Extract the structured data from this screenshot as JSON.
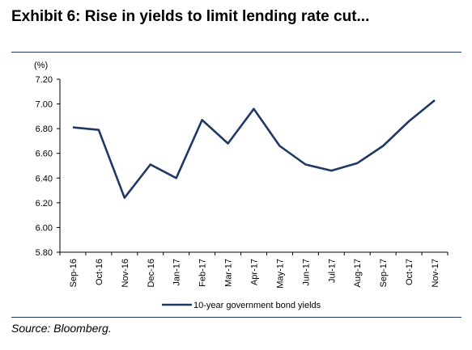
{
  "title": "Exhibit 6:  Rise in yields to limit lending rate cut...",
  "source": "Source: Bloomberg.",
  "chart_data": {
    "type": "line",
    "title": "",
    "ylabel": "(%)",
    "xlabel": "",
    "ylim": [
      5.8,
      7.2
    ],
    "yticks": [
      "5.80",
      "6.00",
      "6.20",
      "6.40",
      "6.60",
      "6.80",
      "7.00",
      "7.20"
    ],
    "categories": [
      "Sep-16",
      "Oct-16",
      "Nov-16",
      "Dec-16",
      "Jan-17",
      "Feb-17",
      "Mar-17",
      "Apr-17",
      "May-17",
      "Jun-17",
      "Jul-17",
      "Aug-17",
      "Sep-17",
      "Oct-17",
      "Nov-17"
    ],
    "series": [
      {
        "name": "10-year government bond yields",
        "color": "#1f3864",
        "values": [
          6.81,
          6.79,
          6.24,
          6.51,
          6.4,
          6.87,
          6.68,
          6.96,
          6.66,
          6.51,
          6.46,
          6.52,
          6.66,
          6.86,
          7.03
        ]
      }
    ],
    "grid": false,
    "legend": "bottom-center"
  }
}
